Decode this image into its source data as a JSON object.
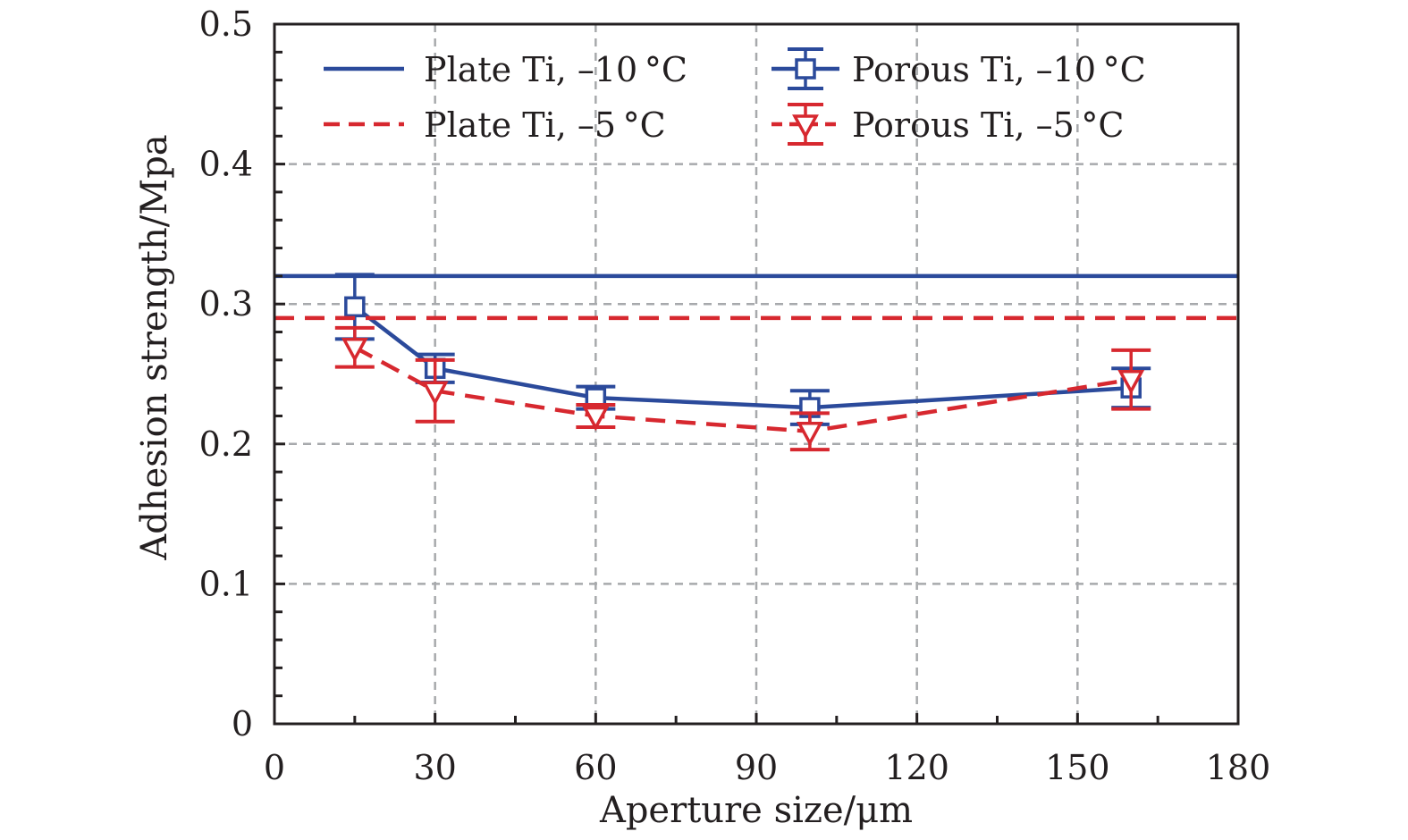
{
  "chart_data": {
    "type": "line",
    "title": "",
    "xlabel": "Aperture size/μm",
    "ylabel": "Adhesion strength/Mpa",
    "xlim": [
      0,
      180
    ],
    "ylim": [
      0,
      0.5
    ],
    "xticks": [
      0,
      30,
      60,
      90,
      120,
      150,
      180
    ],
    "xtick_labels": [
      "0",
      "30",
      "60",
      "90",
      "120",
      "150",
      "180"
    ],
    "xminor_ticks": [
      15,
      45,
      75,
      105,
      135,
      165
    ],
    "yticks": [
      0,
      0.1,
      0.2,
      0.3,
      0.4,
      0.5
    ],
    "ytick_labels": [
      "0",
      "0.1",
      "0.2",
      "0.3",
      "0.4",
      "0.5"
    ],
    "yminor_step": 0.02,
    "grid": true,
    "legend_position": "top",
    "series": [
      {
        "name": "Plate Ti, –10 °C",
        "kind": "hline",
        "value": 0.32,
        "color": "#2b4a9b",
        "dash": "solid",
        "marker": "none"
      },
      {
        "name": "Porous Ti, –10 °C",
        "kind": "errorbar-line",
        "x": [
          15,
          30,
          60,
          100,
          160
        ],
        "y": [
          0.298,
          0.254,
          0.233,
          0.226,
          0.24
        ],
        "yerr": [
          0.023,
          0.01,
          0.008,
          0.012,
          0.014
        ],
        "color": "#2b4a9b",
        "dash": "solid",
        "marker": "square"
      },
      {
        "name": "Plate Ti, –5 °C",
        "kind": "hline",
        "value": 0.29,
        "color": "#d7282f",
        "dash": "dashed",
        "marker": "none"
      },
      {
        "name": "Porous Ti, –5 °C",
        "kind": "errorbar-line",
        "x": [
          15,
          30,
          60,
          100,
          160
        ],
        "y": [
          0.269,
          0.238,
          0.22,
          0.209,
          0.246
        ],
        "yerr": [
          0.014,
          0.022,
          0.008,
          0.013,
          0.021
        ],
        "color": "#d7282f",
        "dash": "dashed",
        "marker": "triangle-down"
      }
    ],
    "legend": [
      {
        "label": "Plate Ti, –10 °C",
        "series": 0
      },
      {
        "label": "Porous Ti, –10 °C",
        "series": 1
      },
      {
        "label": "Plate Ti, –5 °C",
        "series": 2
      },
      {
        "label": "Porous Ti, –5 °C",
        "series": 3
      }
    ],
    "colors": {
      "axis": "#231f20",
      "grid": "#a7a9ac",
      "blue": "#2b4a9b",
      "red": "#d7282f"
    }
  }
}
